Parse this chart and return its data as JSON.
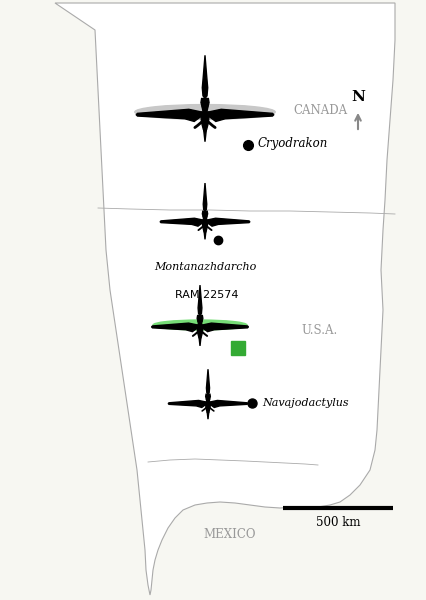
{
  "background_color": "#f7f7f2",
  "map_face_color": "#ffffff",
  "map_outline_color": "#aaaaaa",
  "canada_label": "CANADA",
  "usa_label": "U.S.A.",
  "mexico_label": "MEXICO",
  "label_color": "#999999",
  "label_fontsize": 8.5,
  "gray_wing_color": "#c8c8c8",
  "green_wing_color": "#77dd77",
  "black_color": "#111111",
  "scale_bar_label": "500 km",
  "north_label": "N"
}
